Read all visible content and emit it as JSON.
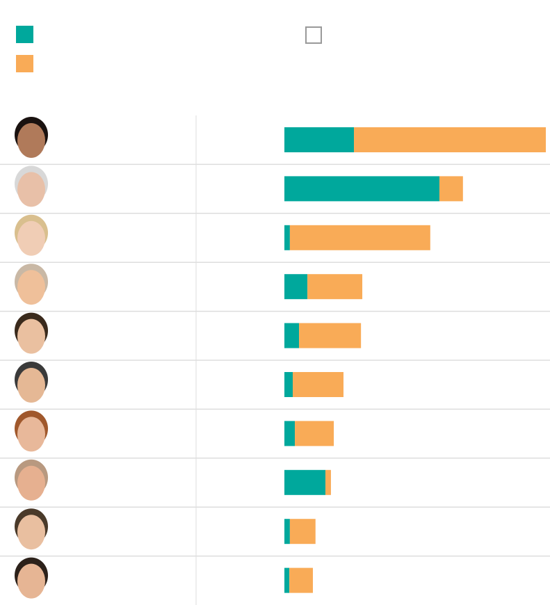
{
  "chart_data": {
    "type": "bar",
    "orientation": "horizontal",
    "stacked": true,
    "title": "",
    "xlabel": "",
    "ylabel": "",
    "grid": false,
    "legend": "top-left",
    "colors": {
      "series_1": "#00a89c",
      "series_2": "#f9ab57",
      "toggle_border": "#999999",
      "row_divider": "#dddddd"
    },
    "row_icons": [
      "candidate-face-1",
      "candidate-face-2",
      "candidate-face-3",
      "candidate-face-4",
      "candidate-face-5",
      "candidate-face-6",
      "candidate-face-7",
      "candidate-face-8",
      "candidate-face-9",
      "candidate-face-10"
    ],
    "xlim": [
      0,
      100
    ],
    "series": [
      {
        "values": [
          26.6,
          59.3,
          2.1,
          8.8,
          5.6,
          3.2,
          4.0,
          15.7,
          2.1,
          1.9
        ]
      },
      {
        "values": [
          73.4,
          9.0,
          53.7,
          21.0,
          23.7,
          19.4,
          14.9,
          2.1,
          9.8,
          9.0
        ]
      }
    ]
  }
}
